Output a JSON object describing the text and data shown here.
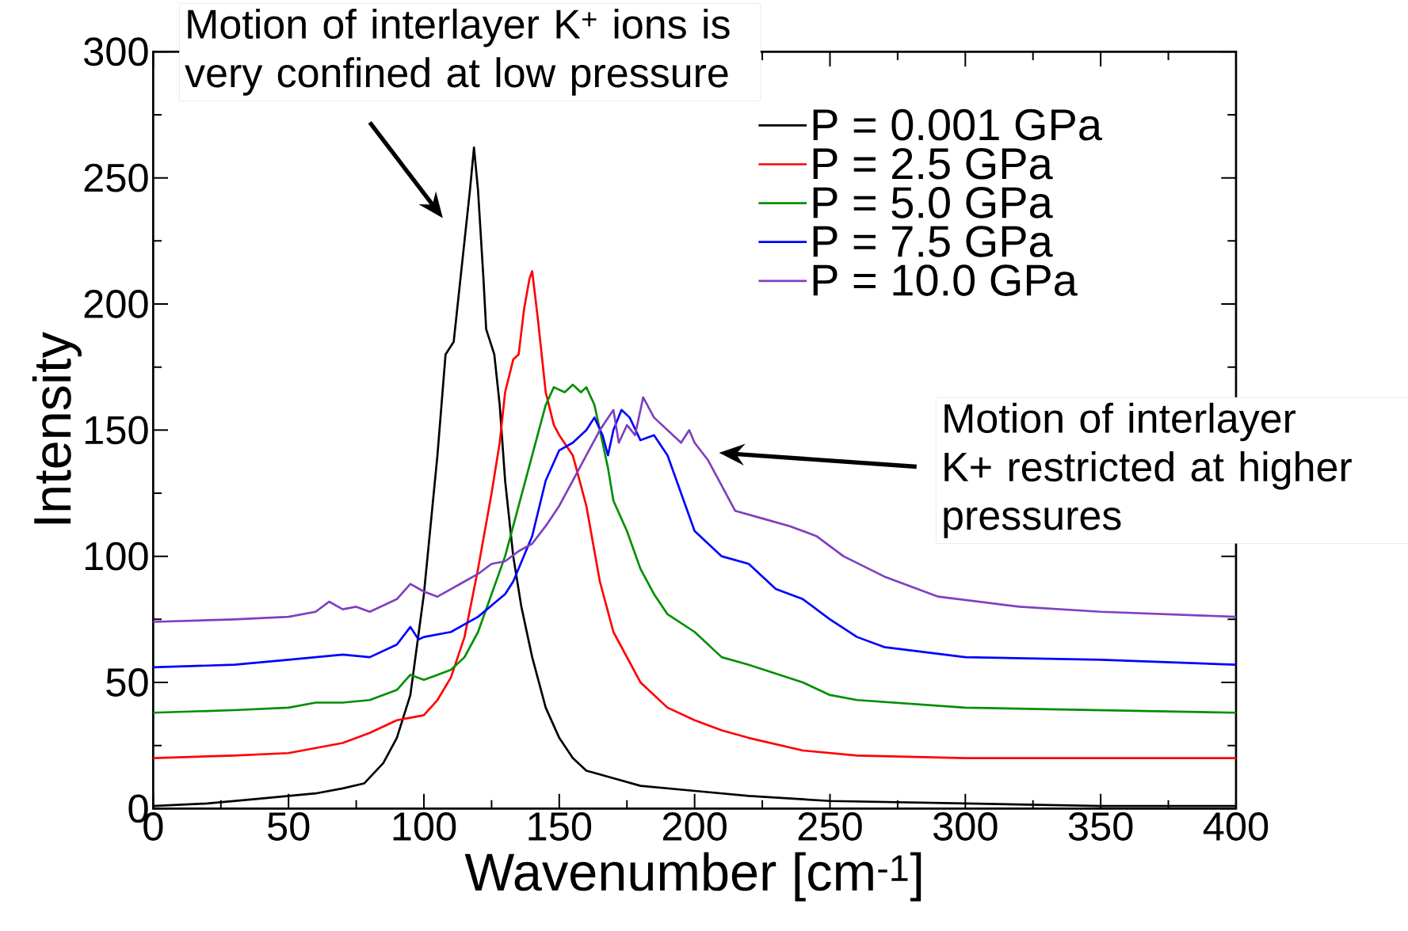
{
  "chart_data": {
    "type": "line",
    "xlabel": "Wavenumber [cm$^{-1}$]",
    "ylabel": "Intensity",
    "xlim": [
      0,
      400
    ],
    "ylim": [
      0,
      300
    ],
    "xticks": [
      0,
      50,
      100,
      150,
      200,
      250,
      300,
      350,
      400
    ],
    "yticks": [
      0,
      50,
      100,
      150,
      200,
      250,
      300
    ],
    "legend": "top right",
    "annotations": [
      "Motion of interlayer K$^{+}$ ions is very confined at low pressure",
      "Motion of interlayer K+ restricted at higher pressures"
    ],
    "series": [
      {
        "name": "P = 0.001 GPa",
        "color": "#000000",
        "x": [
          0,
          20,
          40,
          50,
          60,
          70,
          78,
          85,
          90,
          95,
          100,
          105,
          108,
          111,
          114,
          117,
          118.5,
          120,
          122,
          123,
          126,
          128,
          130,
          133,
          136,
          140,
          145,
          150,
          155,
          160,
          170,
          180,
          200,
          220,
          250,
          300,
          350,
          400
        ],
        "values": [
          1,
          2,
          4,
          5,
          6,
          8,
          10,
          18,
          28,
          45,
          85,
          140,
          180,
          185,
          215,
          245,
          262,
          245,
          210,
          190,
          180,
          160,
          130,
          100,
          80,
          60,
          40,
          28,
          20,
          15,
          12,
          9,
          7,
          5,
          3,
          2,
          1,
          1
        ]
      },
      {
        "name": "P = 2.5 GPa",
        "color": "#ff0000",
        "x": [
          0,
          30,
          50,
          70,
          80,
          90,
          95,
          100,
          105,
          110,
          115,
          120,
          125,
          128,
          130,
          133,
          135,
          137,
          139,
          140,
          142,
          145,
          148,
          150,
          155,
          160,
          165,
          170,
          180,
          190,
          200,
          210,
          220,
          240,
          260,
          300,
          400
        ],
        "values": [
          20,
          21,
          22,
          26,
          30,
          35,
          36,
          37,
          43,
          52,
          68,
          95,
          125,
          145,
          165,
          178,
          180,
          198,
          210,
          213,
          195,
          165,
          152,
          148,
          140,
          120,
          90,
          70,
          50,
          40,
          35,
          31,
          28,
          23,
          21,
          20,
          20
        ]
      },
      {
        "name": "P = 5.0 GPa",
        "color": "#008f00",
        "x": [
          0,
          30,
          50,
          60,
          70,
          80,
          90,
          95,
          100,
          105,
          110,
          115,
          120,
          125,
          130,
          135,
          140,
          145,
          148,
          152,
          155,
          158,
          160,
          163,
          166,
          168,
          170,
          175,
          180,
          185,
          190,
          200,
          210,
          220,
          240,
          250,
          260,
          300,
          400
        ],
        "values": [
          38,
          39,
          40,
          42,
          42,
          43,
          47,
          53,
          51,
          53,
          55,
          60,
          70,
          85,
          100,
          120,
          140,
          160,
          167,
          165,
          168,
          165,
          167,
          160,
          145,
          135,
          122,
          110,
          95,
          85,
          77,
          70,
          60,
          57,
          50,
          45,
          43,
          40,
          38
        ]
      },
      {
        "name": "P = 7.5 GPa",
        "color": "#0000ff",
        "x": [
          0,
          30,
          50,
          70,
          80,
          90,
          95,
          98,
          100,
          110,
          120,
          130,
          133,
          140,
          145,
          150,
          155,
          160,
          163,
          166,
          168,
          170,
          173,
          176,
          180,
          185,
          190,
          195,
          200,
          210,
          220,
          230,
          240,
          250,
          260,
          270,
          300,
          350,
          400
        ],
        "values": [
          56,
          57,
          59,
          61,
          60,
          65,
          72,
          67,
          68,
          70,
          76,
          85,
          90,
          108,
          130,
          142,
          145,
          150,
          155,
          148,
          140,
          150,
          158,
          155,
          146,
          148,
          140,
          125,
          110,
          100,
          97,
          87,
          83,
          75,
          68,
          64,
          60,
          59,
          57
        ]
      },
      {
        "name": "P = 10.0 GPa",
        "color": "#7f3fbf",
        "x": [
          0,
          30,
          50,
          60,
          65,
          70,
          75,
          80,
          90,
          95,
          100,
          105,
          110,
          115,
          120,
          125,
          130,
          135,
          140,
          145,
          150,
          155,
          160,
          165,
          170,
          172,
          175,
          178,
          181,
          185,
          190,
          195,
          198,
          200,
          205,
          210,
          215,
          225,
          235,
          245,
          255,
          270,
          290,
          320,
          350,
          400
        ],
        "values": [
          74,
          75,
          76,
          78,
          82,
          79,
          80,
          78,
          83,
          89,
          86,
          84,
          87,
          90,
          93,
          97,
          98,
          102,
          105,
          112,
          120,
          130,
          140,
          150,
          158,
          145,
          152,
          148,
          163,
          155,
          150,
          145,
          150,
          145,
          138,
          128,
          118,
          115,
          112,
          108,
          100,
          92,
          84,
          80,
          78,
          76
        ]
      }
    ]
  }
}
